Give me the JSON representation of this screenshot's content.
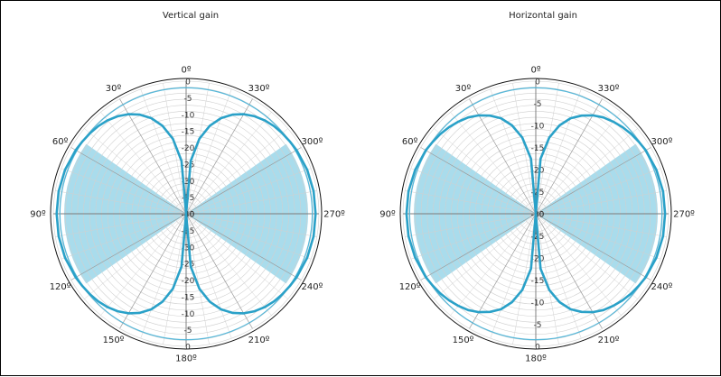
{
  "colors": {
    "pattern": "#2aa1c8",
    "reference": "#54b7d9",
    "sector_fill": "#a9dcec",
    "boundary": "#111111",
    "grid": "#d0d0d0",
    "spoke": "#9a9a9a",
    "axis": "#7a7a7a"
  },
  "chart_data": [
    {
      "type": "polar",
      "title": "Vertical gain",
      "angle_labels": [
        "0º",
        "30º",
        "60º",
        "90º",
        "120º",
        "150º",
        "180º",
        "210º",
        "240º",
        "270º",
        "300º",
        "330º"
      ],
      "angle_direction": "counterclockwise from top",
      "radial_labels": [
        "0",
        "-5",
        "-10",
        "-15",
        "-20",
        "-25",
        "-30",
        "-35",
        "-40"
      ],
      "radial_range_db": [
        -40,
        0
      ],
      "reference_ring_db": -2,
      "shaded_sectors": [
        {
          "from_deg": 55,
          "to_deg": 125
        },
        {
          "from_deg": 235,
          "to_deg": 305
        }
      ],
      "pattern_series": {
        "x_deg": [
          0,
          5,
          10,
          15,
          20,
          25,
          30,
          35,
          40,
          45,
          50,
          55,
          60,
          70,
          80,
          90,
          100,
          110,
          120,
          125,
          130,
          135,
          140,
          145,
          150,
          155,
          160,
          165,
          170,
          175,
          180
        ],
        "y_db": [
          -40,
          -24,
          -17,
          -12.5,
          -9.3,
          -7,
          -5.3,
          -4.1,
          -3.2,
          -2.6,
          -2.2,
          -1.9,
          -1.6,
          -1.2,
          -1.0,
          -1.0,
          -1.0,
          -1.2,
          -1.6,
          -1.9,
          -2.2,
          -2.6,
          -3.2,
          -4.1,
          -5.3,
          -7,
          -9.3,
          -12.5,
          -17,
          -24,
          -40
        ],
        "symmetric": true
      }
    },
    {
      "type": "polar",
      "title": "Horizontal gain",
      "angle_labels": [
        "0º",
        "30º",
        "60º",
        "90º",
        "120º",
        "150º",
        "180º",
        "210º",
        "240º",
        "270º",
        "300º",
        "330º"
      ],
      "angle_direction": "counterclockwise from top",
      "radial_labels": [
        "0",
        "-5",
        "-10",
        "-15",
        "-20",
        "-25",
        "-30"
      ],
      "radial_range_db": [
        -30,
        0
      ],
      "reference_ring_db": -1.5,
      "shaded_sectors": [
        {
          "from_deg": 55,
          "to_deg": 125
        },
        {
          "from_deg": 235,
          "to_deg": 305
        }
      ],
      "pattern_series": {
        "x_deg": [
          0,
          5,
          10,
          15,
          20,
          25,
          30,
          35,
          40,
          45,
          50,
          55,
          60,
          70,
          80,
          90,
          100,
          110,
          120,
          125,
          130,
          135,
          140,
          145,
          150,
          155,
          160,
          165,
          170,
          175,
          180
        ],
        "y_db": [
          -30,
          -17.5,
          -12.5,
          -9.3,
          -7,
          -5.5,
          -4.3,
          -3.4,
          -2.8,
          -2.3,
          -1.9,
          -1.6,
          -1.3,
          -1.0,
          -0.8,
          -0.8,
          -0.8,
          -1.0,
          -1.3,
          -1.6,
          -1.9,
          -2.3,
          -2.8,
          -3.4,
          -4.3,
          -5.5,
          -7,
          -9.3,
          -12.5,
          -17.5,
          -30
        ],
        "symmetric": true
      }
    }
  ]
}
